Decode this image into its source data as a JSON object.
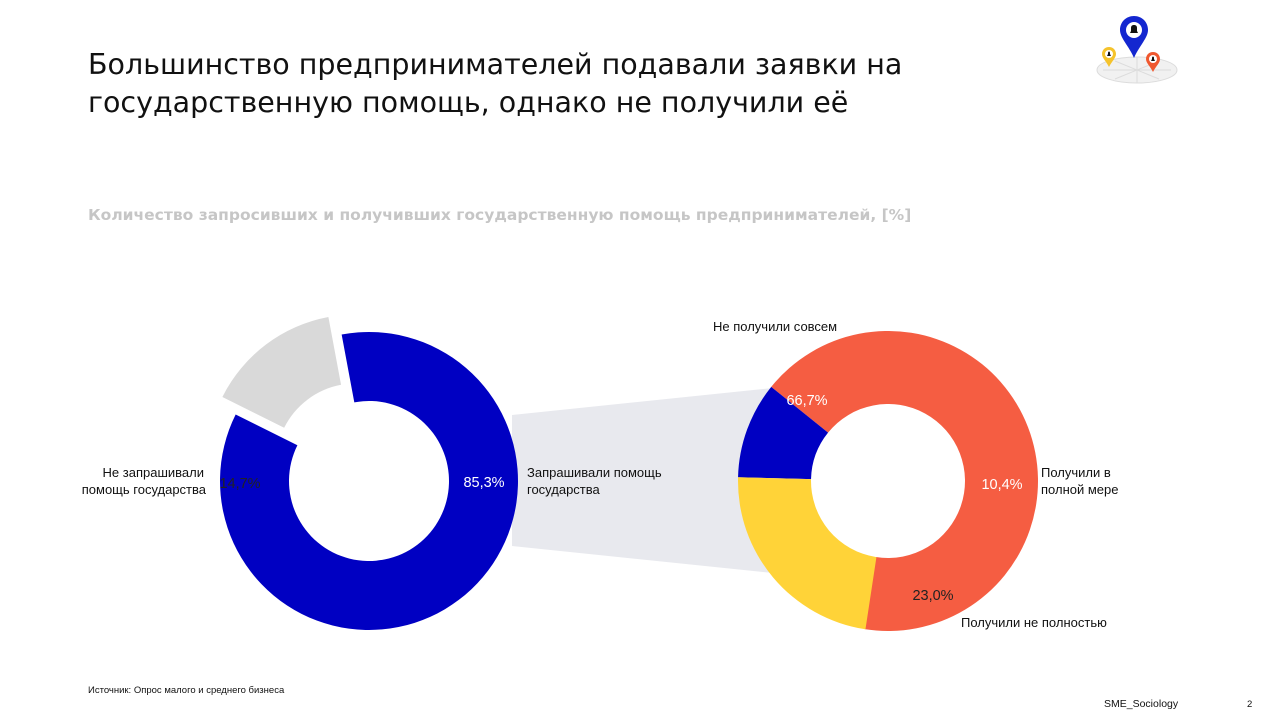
{
  "slide": {
    "title_line1": "Большинство предпринимателей подавали заявки на",
    "title_line2": "государственную помощь, однако не получили её",
    "source": "Источник: Опрос малого и среднего бизнеса",
    "brand": "SME_Sociology",
    "page_number": "2"
  },
  "colors": {
    "blue": "#0000c2",
    "gray": "#d9d9d9",
    "red": "#f55d42",
    "yellow": "#ffd338",
    "connector": "#e8e9ee"
  },
  "chart_data": [
    {
      "type": "pie",
      "variant": "donut",
      "title": "Количество запросивших и получивших государственную помощь предпринимателей, [%]",
      "slices": [
        {
          "label_line1": "Запрашивали помощь",
          "label_line2": "государства",
          "value": 85.3,
          "value_label": "85,3%",
          "color": "#0000c2"
        },
        {
          "label_line1": "Не запрашивали",
          "label_line2": "помощь государства",
          "value": 14.7,
          "value_label": "14,7%",
          "color": "#d9d9d9",
          "exploded": true
        }
      ]
    },
    {
      "type": "pie",
      "variant": "donut",
      "breakdown_of": "Запрашивали помощь государства",
      "slices": [
        {
          "label_line1": "Не получили совсем",
          "label_line2": "",
          "value": 66.7,
          "value_label": "66,7%",
          "color": "#f55d42"
        },
        {
          "label_line1": "Получили в",
          "label_line2": "полной мере",
          "value": 10.4,
          "value_label": "10,4%",
          "color": "#0000c2"
        },
        {
          "label_line1": "Получили не полностью",
          "label_line2": "",
          "value": 23.0,
          "value_label": "23,0%",
          "color": "#ffd338"
        }
      ]
    }
  ]
}
